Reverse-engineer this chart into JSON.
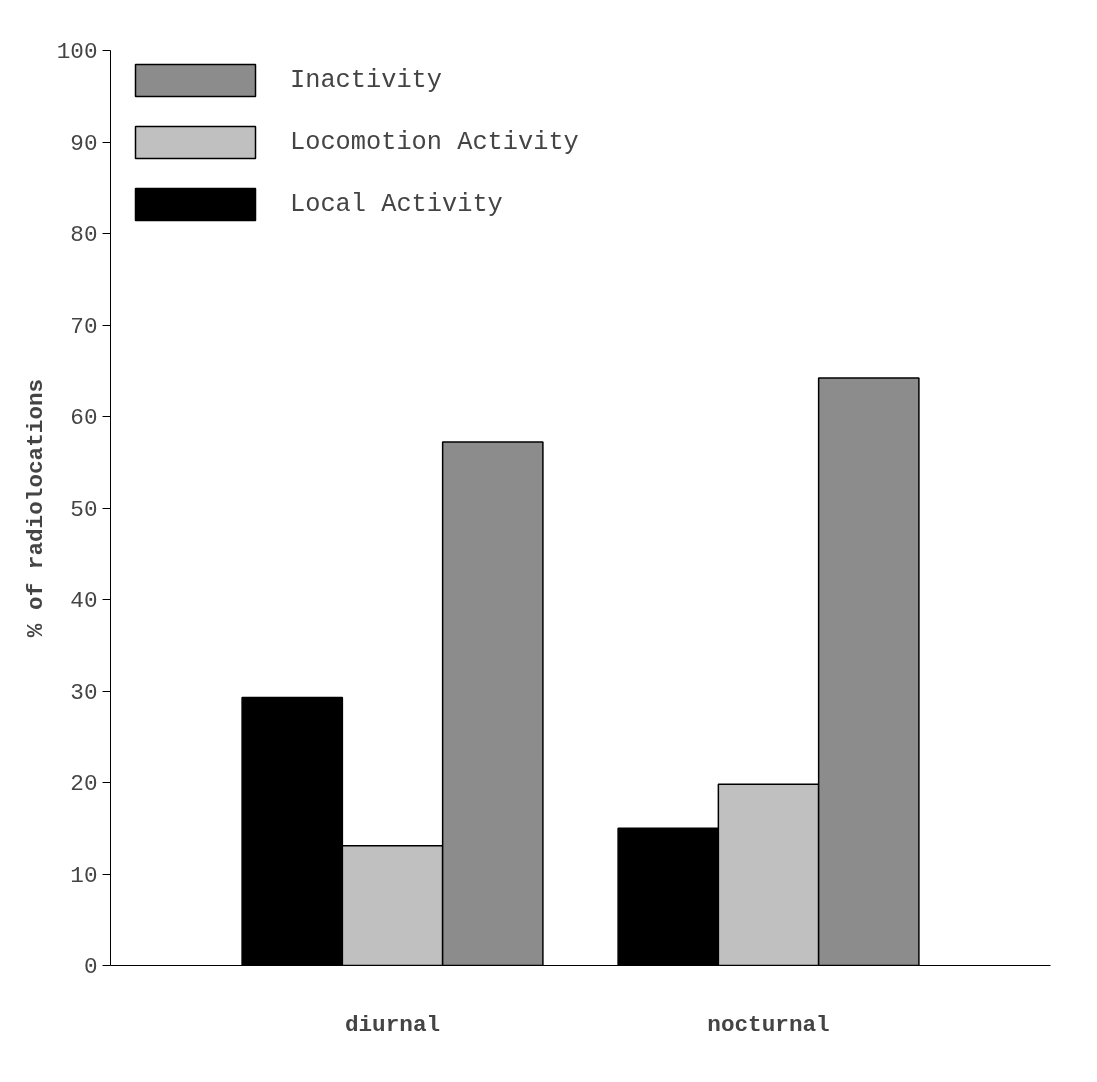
{
  "chart_data": {
    "type": "bar",
    "ylabel": "% of radiolocations",
    "categories": [
      "diurnal",
      "nocturnal"
    ],
    "series": [
      {
        "name": "Local Activity",
        "color": "#000000",
        "values": [
          29.3,
          15.0
        ]
      },
      {
        "name": "Locomotion Activity",
        "color": "#c0c0c0",
        "values": [
          13.1,
          19.8
        ]
      },
      {
        "name": "Inactivity",
        "color": "#8c8c8c",
        "values": [
          57.2,
          64.2
        ]
      }
    ],
    "ylim": [
      0,
      100
    ],
    "yticks": [
      0,
      10,
      20,
      30,
      40,
      50,
      60,
      70,
      80,
      90,
      100
    ],
    "grid": false,
    "legend": "top left"
  }
}
